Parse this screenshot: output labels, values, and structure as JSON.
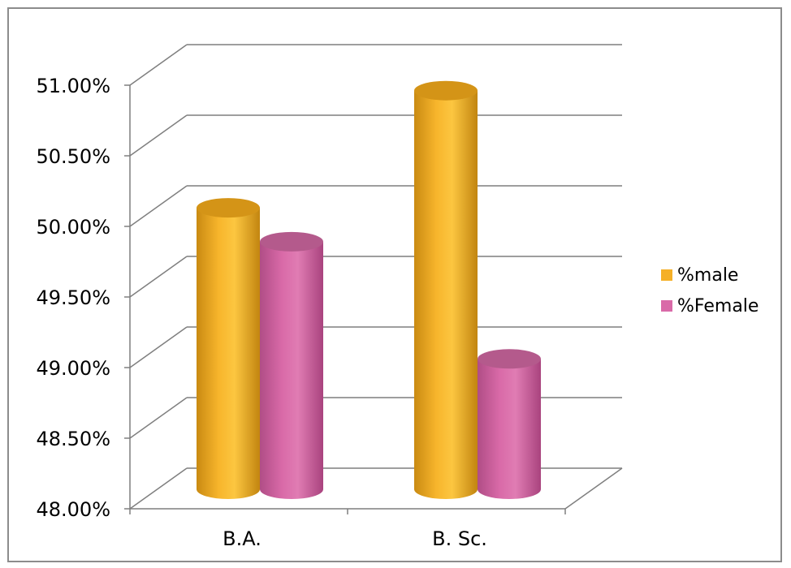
{
  "chart_data": {
    "type": "bar",
    "title": "",
    "xlabel": "",
    "ylabel": "",
    "categories": [
      "B.A.",
      "B. Sc."
    ],
    "series": [
      {
        "name": "%male",
        "values": [
          50.12,
          50.95
        ],
        "color": "#f5b027"
      },
      {
        "name": "%Female",
        "values": [
          49.88,
          49.05
        ],
        "color": "#d96aa8"
      }
    ],
    "ylim": [
      48.0,
      51.0
    ],
    "yticks": [
      "48.00%",
      "48.50%",
      "49.00%",
      "49.50%",
      "50.00%",
      "50.50%",
      "51.00%"
    ],
    "grid": true,
    "legend_position": "right",
    "style": "3d-cylinder"
  }
}
